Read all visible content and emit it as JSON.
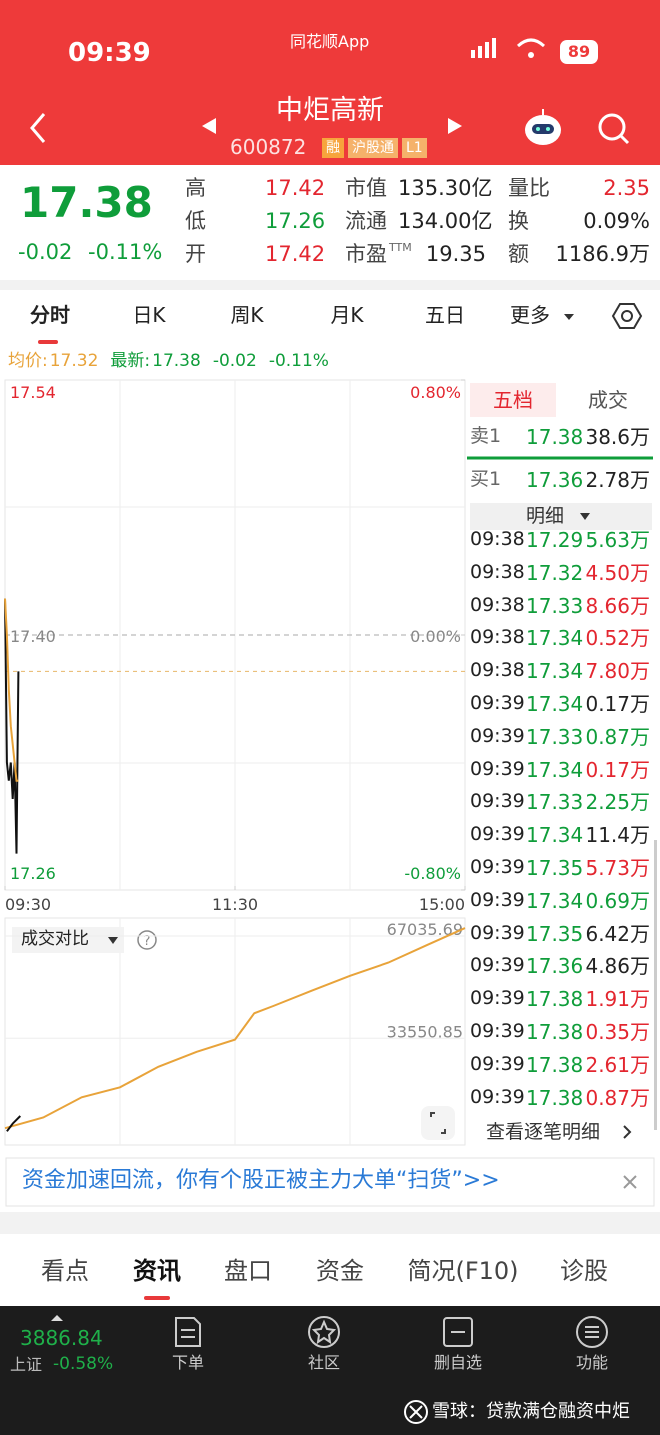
{
  "status_bar": {
    "time": "09:39",
    "app": "同花顺App",
    "battery": "89"
  },
  "header": {
    "title": "中炬高新",
    "code": "600872",
    "tags": [
      "融",
      "沪股通",
      "L1"
    ]
  },
  "quote": {
    "price": "17.38",
    "change": "-0.02",
    "change_pct": "-0.11%",
    "stats": [
      [
        {
          "label": "高",
          "value": "17.42",
          "color": "red"
        },
        {
          "label": "市值",
          "value": "135.30亿"
        },
        {
          "label": "量比",
          "value": "2.35",
          "color": "red"
        }
      ],
      [
        {
          "label": "低",
          "value": "17.26",
          "color": "green"
        },
        {
          "label": "流通",
          "value": "134.00亿"
        },
        {
          "label": "换",
          "value": "0.09%"
        }
      ],
      [
        {
          "label": "开",
          "value": "17.42",
          "color": "red"
        },
        {
          "label": "市盈",
          "sup": "TTM",
          "value": "19.35"
        },
        {
          "label": "额",
          "value": "1186.9万"
        }
      ]
    ]
  },
  "tabs": [
    "分时",
    "日K",
    "周K",
    "月K",
    "五日",
    "更多"
  ],
  "info": {
    "avg_label": "均价:",
    "avg": "17.32",
    "latest_label": "最新:",
    "latest": "17.38",
    "change": "-0.02",
    "change_pct": "-0.11%"
  },
  "chart_data": [
    {
      "type": "line",
      "x": [
        0,
        1,
        2,
        3,
        4,
        5,
        6,
        7
      ],
      "series": [
        {
          "color": "#111111",
          "values": [
            17.42,
            17.33,
            17.32,
            17.33,
            17.31,
            17.33,
            17.28,
            17.38
          ]
        },
        {
          "color": "#e8a33a",
          "values": [
            17.42,
            17.4,
            17.37,
            17.35,
            17.34,
            17.33,
            17.32,
            17.32
          ]
        }
      ],
      "latest_line": 17.38,
      "xlim": [
        0,
        240
      ],
      "xticks": [
        {
          "value": 0,
          "label": "09:30"
        },
        {
          "value": 120,
          "label": "11:30"
        },
        {
          "value": 240,
          "label": "15:00"
        }
      ],
      "ylim": [
        17.26,
        17.54
      ],
      "yticks": [
        17.54,
        {
          "value": 17.4,
          "label": "17.40"
        },
        17.26
      ],
      "y2lim": [
        -0.8,
        0.8
      ],
      "y2ticks": [
        {
          "value": 0.8,
          "label": "0.80%"
        },
        {
          "value": 0,
          "label": "0.00%"
        },
        {
          "value": -0.8,
          "label": "-0.80%"
        }
      ]
    },
    {
      "type": "line",
      "title": "成交对比",
      "xlim": [
        0,
        240
      ],
      "ylim": [
        -4000,
        67035.69
      ],
      "yticks": [
        67035.69,
        33550.85
      ],
      "series": [
        {
          "color": "#e8a33a",
          "x": [
            0,
            20,
            40,
            60,
            80,
            100,
            120,
            130,
            140,
            160,
            180,
            200,
            220,
            240
          ],
          "values": [
            1500,
            5000,
            11600,
            14900,
            21600,
            26500,
            30500,
            39100,
            41500,
            46500,
            51400,
            55700,
            61400,
            67000
          ]
        },
        {
          "color": "#111111",
          "x": [
            1,
            4,
            8
          ],
          "values": [
            500,
            3000,
            5500
          ]
        }
      ]
    }
  ],
  "order_book": {
    "tabs": [
      "五档",
      "成交"
    ],
    "sell": {
      "label": "卖1",
      "price": "17.38",
      "volume": "38.6万"
    },
    "buy": {
      "label": "买1",
      "price": "17.36",
      "volume": "2.78万"
    },
    "detail": "明细"
  },
  "trades": [
    {
      "time": "09:38",
      "price": "17.29",
      "volume": "5.63万",
      "color": "green"
    },
    {
      "time": "09:38",
      "price": "17.32",
      "volume": "4.50万",
      "color": "red"
    },
    {
      "time": "09:38",
      "price": "17.33",
      "volume": "8.66万",
      "color": "red"
    },
    {
      "time": "09:38",
      "price": "17.34",
      "volume": "0.52万",
      "color": "red"
    },
    {
      "time": "09:38",
      "price": "17.34",
      "volume": "7.80万",
      "color": "red"
    },
    {
      "time": "09:39",
      "price": "17.34",
      "volume": "0.17万",
      "color": "black"
    },
    {
      "time": "09:39",
      "price": "17.33",
      "volume": "0.87万",
      "color": "green"
    },
    {
      "time": "09:39",
      "price": "17.34",
      "volume": "0.17万",
      "color": "red"
    },
    {
      "time": "09:39",
      "price": "17.33",
      "volume": "2.25万",
      "color": "green"
    },
    {
      "time": "09:39",
      "price": "17.34",
      "volume": "11.4万",
      "color": "black"
    },
    {
      "time": "09:39",
      "price": "17.35",
      "volume": "5.73万",
      "color": "red"
    },
    {
      "time": "09:39",
      "price": "17.34",
      "volume": "0.69万",
      "color": "green"
    },
    {
      "time": "09:39",
      "price": "17.35",
      "volume": "6.42万",
      "color": "black"
    },
    {
      "time": "09:39",
      "price": "17.36",
      "volume": "4.86万",
      "color": "black"
    },
    {
      "time": "09:39",
      "price": "17.38",
      "volume": "1.91万",
      "color": "red"
    },
    {
      "time": "09:39",
      "price": "17.38",
      "volume": "0.35万",
      "color": "red"
    },
    {
      "time": "09:39",
      "price": "17.38",
      "volume": "2.61万",
      "color": "red"
    },
    {
      "time": "09:39",
      "price": "17.38",
      "volume": "0.87万",
      "color": "red"
    }
  ],
  "trades_link": "查看逐笔明细",
  "banner": "资金加速回流，你有个股正被主力大单“扫货”>>",
  "bottom_tabs": [
    "看点",
    "资讯",
    "盘口",
    "资金",
    "简况(F10)",
    "诊股"
  ],
  "nav": {
    "index_value": "3886.84",
    "index_name": "上证",
    "index_change": "-0.58%",
    "items": [
      "下单",
      "社区",
      "删自选",
      "功能"
    ]
  },
  "watermark": "雪球：贷款满仓融资中炬"
}
